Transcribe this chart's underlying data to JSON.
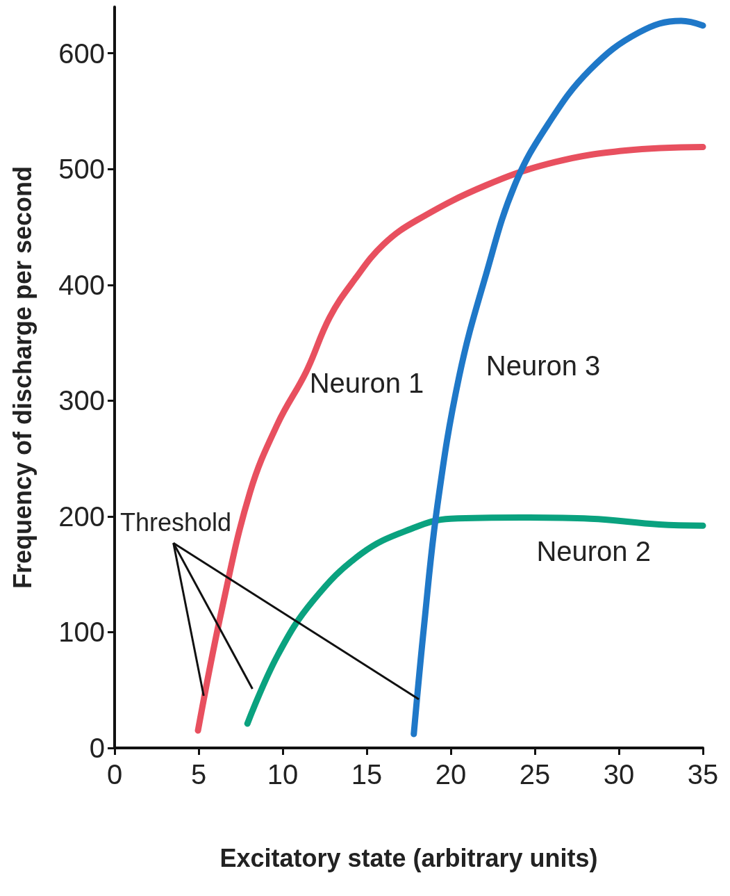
{
  "chart_data": {
    "type": "line",
    "xlabel": "Excitatory state (arbitrary units)",
    "ylabel": "Frequency of discharge per second",
    "xlim": [
      0,
      35
    ],
    "xticks": [
      0,
      5,
      10,
      15,
      20,
      25,
      30,
      35
    ],
    "ylim": [
      0,
      640
    ],
    "yticks": [
      0,
      100,
      200,
      300,
      400,
      500,
      600
    ],
    "grid": false,
    "legend": false,
    "line_style": "solid",
    "annotations": [
      {
        "text": "Threshold",
        "x": 5.3,
        "y": 45
      }
    ],
    "series": [
      {
        "name": "Neuron 1",
        "color": "#e8505f",
        "x": [
          4.96,
          6.4,
          8.06,
          9.7,
          11.4,
          12.8,
          14.3,
          16,
          18,
          22.1,
          26.2,
          30.4,
          35
        ],
        "values": [
          15,
          121,
          221,
          280,
          325,
          372,
          405,
          435,
          456,
          486,
          506,
          516,
          519
        ]
      },
      {
        "name": "Neuron 2",
        "color": "#0aa27f",
        "x": [
          7.9,
          9.7,
          11.8,
          14.7,
          17.6,
          20,
          24.2,
          28.3,
          32.4,
          35
        ],
        "values": [
          21,
          80,
          127,
          168,
          189,
          198,
          199,
          198,
          193,
          192
        ]
      },
      {
        "name": "Neuron 3",
        "color": "#1f78c8",
        "x": [
          17.8,
          18.4,
          19.2,
          20.5,
          22.1,
          23.8,
          25.8,
          28.3,
          31.2,
          33.7,
          35
        ],
        "values": [
          12,
          104,
          209,
          321,
          409,
          486,
          539,
          586,
          618,
          628,
          624
        ]
      }
    ]
  }
}
